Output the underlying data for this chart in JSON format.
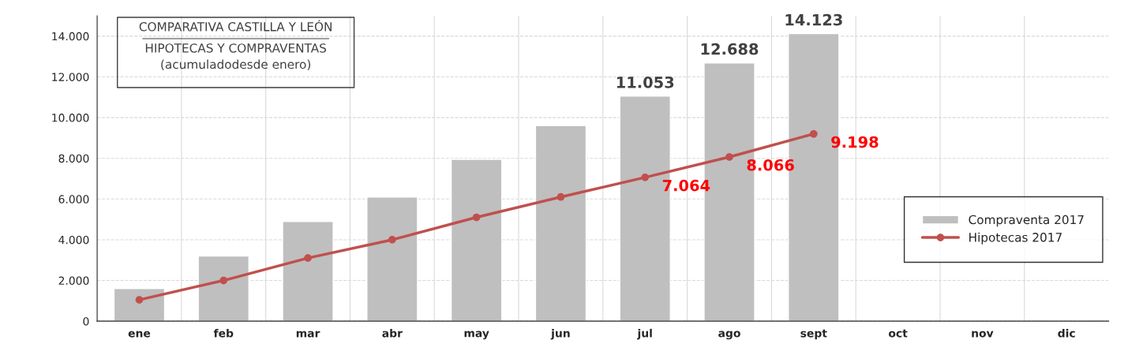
{
  "chart_data": {
    "type": "bar",
    "title": "COMPARATIVA CASTILLA Y LEÓN",
    "subtitle": "HIPOTECAS Y COMPRAVENTAS\n(acumuladodesde enero)",
    "categories": [
      "ene",
      "feb",
      "mar",
      "abr",
      "may",
      "jun",
      "jul",
      "ago",
      "sept",
      "oct",
      "nov",
      "dic"
    ],
    "series": [
      {
        "name": "Compraventa 2017",
        "color": "#bfbfbf",
        "values": [
          1600,
          3200,
          4900,
          6100,
          7950,
          9600,
          11053,
          12688,
          14123,
          null,
          null,
          null
        ],
        "value_labels": [
          null,
          null,
          null,
          null,
          null,
          null,
          "11.053",
          "12.688",
          "14.123",
          null,
          null,
          null
        ]
      },
      {
        "name": "Hipotecas 2017",
        "type": "line",
        "color": "#c0504d",
        "marker": "circle",
        "values": [
          1050,
          2000,
          3100,
          4000,
          5100,
          6100,
          7064,
          8066,
          9198,
          null,
          null,
          null
        ],
        "value_labels": [
          null,
          null,
          null,
          null,
          null,
          null,
          "7.064",
          "8.066",
          "9.198",
          null,
          null,
          null
        ]
      }
    ],
    "ylim": [
      0,
      15000
    ],
    "yticks": [
      0,
      {
        "value": 2000,
        "label": "2.000"
      },
      {
        "value": 4000,
        "label": "4.000"
      },
      {
        "value": 6000,
        "label": "6.000"
      },
      {
        "value": 8000,
        "label": "8.000"
      },
      {
        "value": 10000,
        "label": "10.000"
      },
      {
        "value": 12000,
        "label": "12.000"
      },
      {
        "value": 14000,
        "label": "14.000"
      }
    ],
    "grid": true,
    "legend": "right"
  }
}
